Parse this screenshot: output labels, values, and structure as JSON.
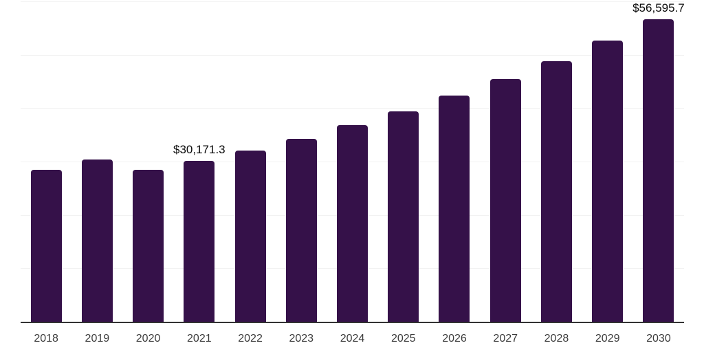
{
  "chart_data": {
    "type": "bar",
    "title": "",
    "xlabel": "",
    "ylabel": "",
    "categories": [
      "2018",
      "2019",
      "2020",
      "2021",
      "2022",
      "2023",
      "2024",
      "2025",
      "2026",
      "2027",
      "2028",
      "2029",
      "2030"
    ],
    "values": [
      28500,
      30450,
      28400,
      30171.3,
      32050,
      34250,
      36820,
      39400,
      42360,
      45450,
      48800,
      52660,
      56595.7
    ],
    "data_labels": [
      {
        "category": "2021",
        "text": "$30,171.3"
      },
      {
        "category": "2030",
        "text": "$56,595.7"
      }
    ],
    "ylim": [
      0,
      60000
    ],
    "gridline_step": 10000,
    "grid": true,
    "legend": false,
    "y_tick_labels_visible": false,
    "colors": {
      "bar": "#351149",
      "axis_line": "#333333",
      "gridline": "#f2f2f2",
      "tick_label": "#3c3c3c",
      "data_label": "#0a0a0a",
      "background": "#ffffff"
    }
  }
}
